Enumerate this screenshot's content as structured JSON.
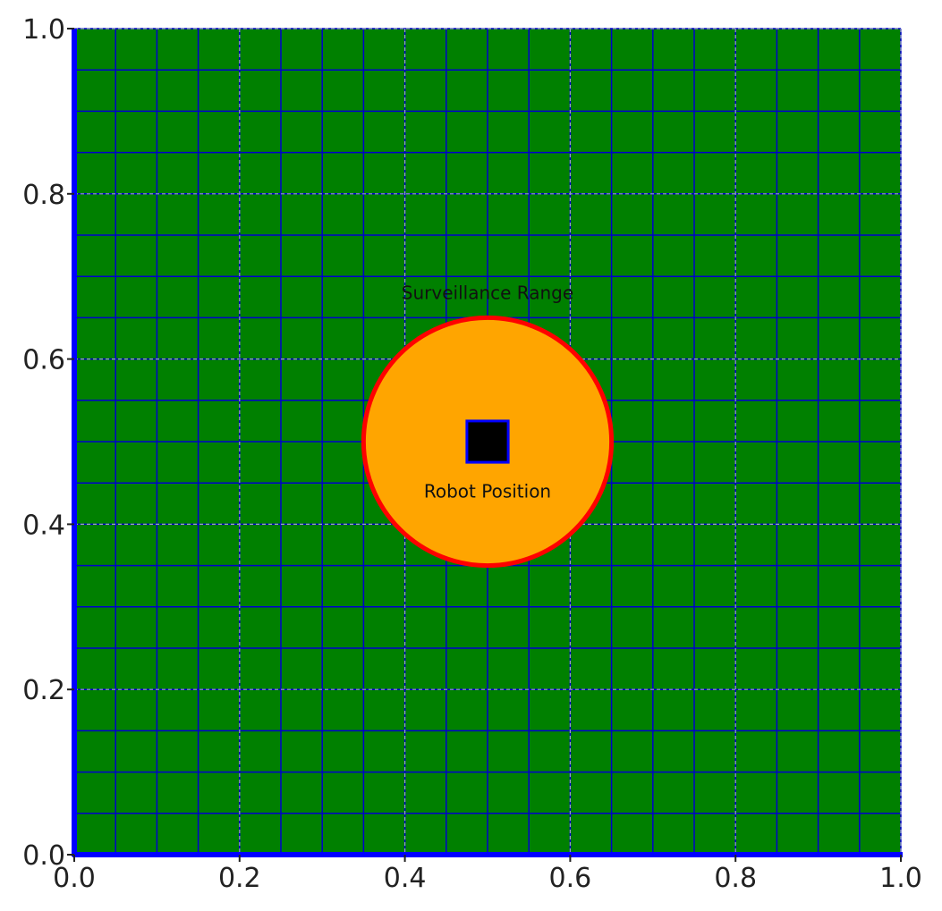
{
  "chart_data": {
    "type": "scatter",
    "title": "",
    "xlabel": "",
    "ylabel": "",
    "xlim": [
      0,
      1
    ],
    "ylim": [
      0,
      1
    ],
    "xticks": [
      "0.0",
      "0.2",
      "0.4",
      "0.6",
      "0.8",
      "1.0"
    ],
    "yticks": [
      "0.0",
      "0.2",
      "0.4",
      "0.6",
      "0.8",
      "1.0"
    ],
    "grid": true,
    "cell_size": 0.05,
    "background_color": "#008000",
    "cell_line_color": "#0000cc",
    "major_grid_color": "#9aa0c8",
    "axis_color": "#0000ff",
    "surveillance_range": {
      "center": [
        0.5,
        0.5
      ],
      "radius": 0.15,
      "fill": "#ffa500",
      "edge": "#ff0000",
      "label": "Surveillance Range",
      "label_pos": [
        0.5,
        0.68
      ]
    },
    "robot": {
      "center": [
        0.5,
        0.5
      ],
      "size": 0.05,
      "fill": "#000000",
      "edge": "#0000ff",
      "label": "Robot Position",
      "label_pos": [
        0.5,
        0.44
      ]
    }
  }
}
